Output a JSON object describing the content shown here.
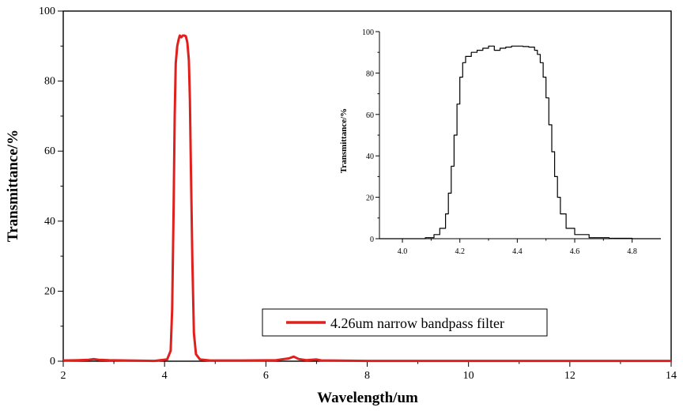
{
  "chart_data": [
    {
      "type": "line",
      "name": "main",
      "xlabel": "Wavelength/um",
      "ylabel": "Transmittance/%",
      "xlim": [
        2,
        14
      ],
      "ylim": [
        0,
        100
      ],
      "xticks": [
        "2",
        "4",
        "6",
        "8",
        "10",
        "12",
        "14"
      ],
      "yticks": [
        "0",
        "20",
        "40",
        "60",
        "80",
        "100"
      ],
      "legend": {
        "label": "4.26um narrow bandpass filter",
        "placement": "bottom-right"
      },
      "series": [
        {
          "name": "4.26um narrow bandpass filter",
          "color": "#e0201c",
          "x": [
            2.0,
            2.3,
            2.5,
            2.6,
            2.7,
            2.9,
            3.3,
            3.8,
            4.05,
            4.12,
            4.15,
            4.18,
            4.2,
            4.22,
            4.25,
            4.28,
            4.3,
            4.33,
            4.36,
            4.39,
            4.42,
            4.45,
            4.48,
            4.5,
            4.52,
            4.55,
            4.58,
            4.62,
            4.7,
            4.9,
            5.5,
            6.2,
            6.45,
            6.55,
            6.65,
            6.8,
            7.0,
            7.1,
            7.3,
            8.0,
            10.0,
            12.0,
            14.0
          ],
          "y": [
            0.2,
            0.3,
            0.4,
            0.6,
            0.4,
            0.3,
            0.2,
            0.1,
            0.5,
            3,
            15,
            45,
            70,
            85,
            90,
            92,
            93,
            92.5,
            93,
            93,
            92.8,
            91,
            86,
            75,
            55,
            28,
            8,
            2,
            0.5,
            0.2,
            0.2,
            0.3,
            0.8,
            1.3,
            0.6,
            0.3,
            0.5,
            0.2,
            0.2,
            0.1,
            0.1,
            0.1,
            0.1
          ]
        }
      ]
    },
    {
      "type": "line",
      "name": "inset",
      "xlabel": "",
      "ylabel": "Transmittance/%",
      "xlim": [
        3.92,
        4.9
      ],
      "ylim": [
        0,
        100
      ],
      "xticks": [
        "4.0",
        "4.2",
        "4.4",
        "4.6",
        "4.8"
      ],
      "yticks": [
        "0",
        "20",
        "40",
        "60",
        "80",
        "100"
      ],
      "series": [
        {
          "name": "4.26um narrow bandpass filter",
          "color": "#000000",
          "x": [
            3.92,
            4.04,
            4.08,
            4.11,
            4.13,
            4.15,
            4.16,
            4.17,
            4.18,
            4.19,
            4.2,
            4.21,
            4.22,
            4.24,
            4.26,
            4.28,
            4.3,
            4.32,
            4.34,
            4.36,
            4.38,
            4.4,
            4.42,
            4.44,
            4.46,
            4.47,
            4.48,
            4.49,
            4.5,
            4.51,
            4.52,
            4.53,
            4.54,
            4.55,
            4.57,
            4.6,
            4.65,
            4.72,
            4.8,
            4.9
          ],
          "y": [
            0,
            0,
            0.5,
            2,
            5,
            12,
            22,
            35,
            50,
            65,
            78,
            85,
            88,
            90,
            91,
            92,
            93,
            91,
            92,
            92.5,
            93,
            93,
            92.8,
            92.5,
            91,
            89,
            85,
            78,
            68,
            55,
            42,
            30,
            20,
            12,
            5,
            2,
            0.5,
            0.2,
            0,
            0
          ]
        }
      ]
    }
  ]
}
